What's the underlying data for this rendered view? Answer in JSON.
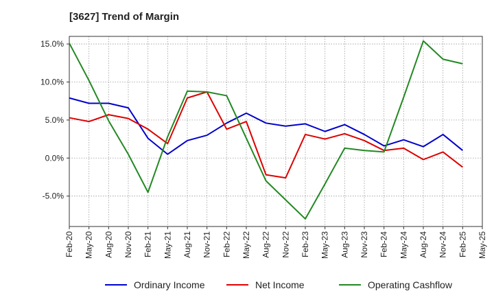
{
  "chart_data": {
    "type": "line",
    "title": "[3627]  Trend of Margin",
    "x": [
      "Feb-20",
      "May-20",
      "Aug-20",
      "Nov-20",
      "Feb-21",
      "May-21",
      "Aug-21",
      "Nov-21",
      "Feb-22",
      "May-22",
      "Aug-22",
      "Nov-22",
      "Feb-23",
      "May-23",
      "Aug-23",
      "Nov-23",
      "Feb-24",
      "May-24",
      "Aug-24",
      "Nov-24",
      "Feb-25",
      "May-25"
    ],
    "ylim": [
      -9,
      16
    ],
    "yticks": [
      15.0,
      10.0,
      5.0,
      0.0,
      -5.0
    ],
    "ytick_labels": [
      "15.0%",
      "10.0%",
      "5.0%",
      "0.0%",
      "-5.0%"
    ],
    "grid": true,
    "legend_position": "bottom",
    "series": [
      {
        "name": "Ordinary Income",
        "color": "#0000cc",
        "values": [
          7.9,
          7.2,
          7.2,
          6.6,
          2.6,
          0.5,
          2.3,
          3.0,
          4.6,
          5.9,
          4.6,
          4.2,
          4.5,
          3.5,
          4.4,
          3.1,
          1.6,
          2.4,
          1.5,
          3.1,
          1.0,
          null
        ]
      },
      {
        "name": "Net Income",
        "color": "#dd0000",
        "values": [
          5.3,
          4.8,
          5.7,
          5.2,
          3.8,
          1.9,
          7.9,
          8.7,
          3.8,
          4.8,
          -2.2,
          -2.6,
          3.1,
          2.5,
          3.2,
          2.3,
          1.0,
          1.3,
          -0.2,
          0.8,
          -1.2,
          null
        ]
      },
      {
        "name": "Operating Cashflow",
        "color": "#228822",
        "values": [
          15.1,
          10.2,
          4.9,
          0.5,
          -4.5,
          2.8,
          8.8,
          8.7,
          8.2,
          2.6,
          -3.0,
          -5.5,
          -8.0,
          -3.4,
          1.3,
          1.0,
          0.8,
          8.0,
          15.4,
          13.0,
          12.4,
          null
        ]
      }
    ]
  }
}
